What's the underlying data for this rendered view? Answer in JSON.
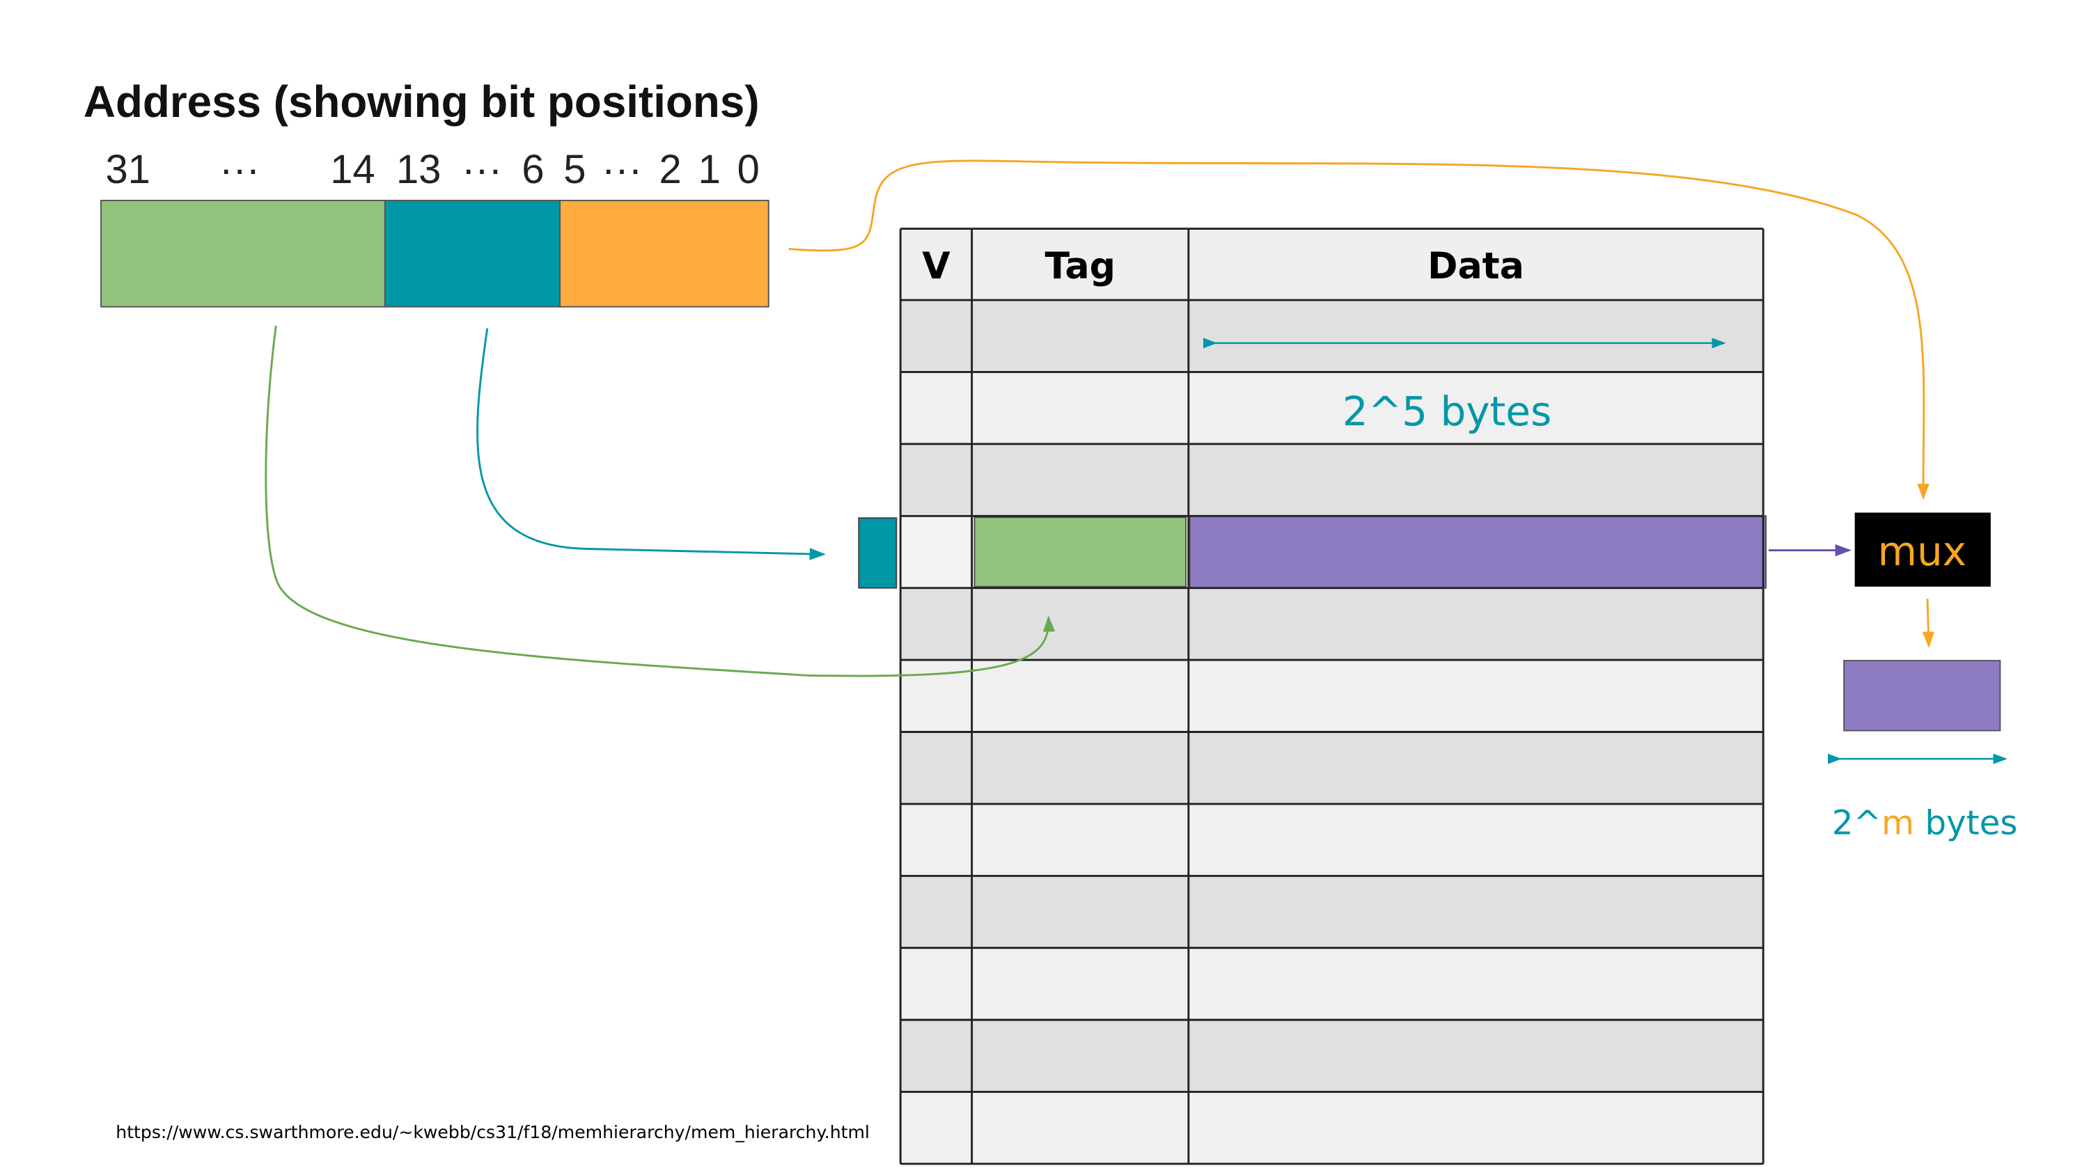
{
  "title": "Address (showing bit positions)",
  "bit_labels": [
    "31",
    "···",
    "14",
    "13",
    "···",
    "6",
    "5",
    "···",
    "2",
    "1",
    "0"
  ],
  "table": {
    "headers": [
      "V",
      "Tag",
      "Data"
    ]
  },
  "data_width_label": "2^5 bytes",
  "mux": "mux",
  "output_label": {
    "prefix": "2^",
    "variable": "m",
    "suffix": " bytes"
  },
  "source_url": "https://www.cs.swarthmore.edu/~kwebb/cs31/f18/memhierarchy/mem_hierarchy.html"
}
